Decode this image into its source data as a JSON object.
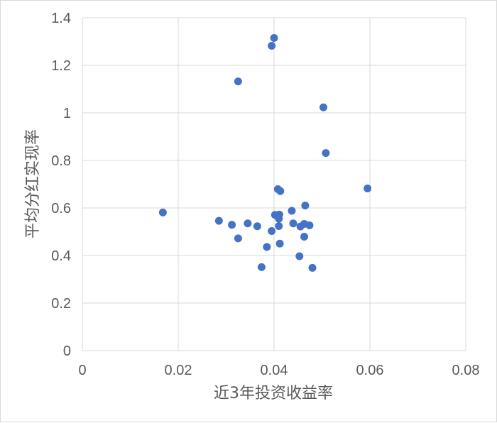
{
  "chart_data": {
    "type": "scatter",
    "xlabel": "近3年投资收益率",
    "ylabel": "平均分红实现率",
    "xlim": [
      0,
      0.08
    ],
    "ylim": [
      0,
      1.4
    ],
    "x_ticks": [
      0,
      0.02,
      0.04,
      0.06,
      0.08
    ],
    "x_tick_labels": [
      "0",
      "0.02",
      "0.04",
      "0.06",
      "0.08"
    ],
    "y_ticks": [
      0,
      0.2,
      0.4,
      0.6,
      0.8,
      1.0,
      1.2,
      1.4
    ],
    "y_tick_labels": [
      "0",
      "0.2",
      "0.4",
      "0.6",
      "0.8",
      "1",
      "1.2",
      "1.4"
    ],
    "grid": true,
    "marker_color": "#4472c4",
    "points": [
      {
        "x": 0.04,
        "y": 1.315
      },
      {
        "x": 0.0395,
        "y": 1.282
      },
      {
        "x": 0.0325,
        "y": 1.132
      },
      {
        "x": 0.0503,
        "y": 1.023
      },
      {
        "x": 0.0508,
        "y": 0.831
      },
      {
        "x": 0.0595,
        "y": 0.682
      },
      {
        "x": 0.0408,
        "y": 0.679
      },
      {
        "x": 0.0413,
        "y": 0.671
      },
      {
        "x": 0.0465,
        "y": 0.61
      },
      {
        "x": 0.0168,
        "y": 0.581
      },
      {
        "x": 0.0437,
        "y": 0.588
      },
      {
        "x": 0.0402,
        "y": 0.571
      },
      {
        "x": 0.0411,
        "y": 0.572
      },
      {
        "x": 0.041,
        "y": 0.555
      },
      {
        "x": 0.0285,
        "y": 0.546
      },
      {
        "x": 0.0345,
        "y": 0.535
      },
      {
        "x": 0.0312,
        "y": 0.529
      },
      {
        "x": 0.0365,
        "y": 0.523
      },
      {
        "x": 0.041,
        "y": 0.524
      },
      {
        "x": 0.044,
        "y": 0.535
      },
      {
        "x": 0.0455,
        "y": 0.522
      },
      {
        "x": 0.0463,
        "y": 0.533
      },
      {
        "x": 0.0474,
        "y": 0.527
      },
      {
        "x": 0.0395,
        "y": 0.503
      },
      {
        "x": 0.0325,
        "y": 0.472
      },
      {
        "x": 0.0463,
        "y": 0.479
      },
      {
        "x": 0.0412,
        "y": 0.45
      },
      {
        "x": 0.0385,
        "y": 0.436
      },
      {
        "x": 0.0453,
        "y": 0.397
      },
      {
        "x": 0.0374,
        "y": 0.351
      },
      {
        "x": 0.048,
        "y": 0.348
      }
    ]
  }
}
